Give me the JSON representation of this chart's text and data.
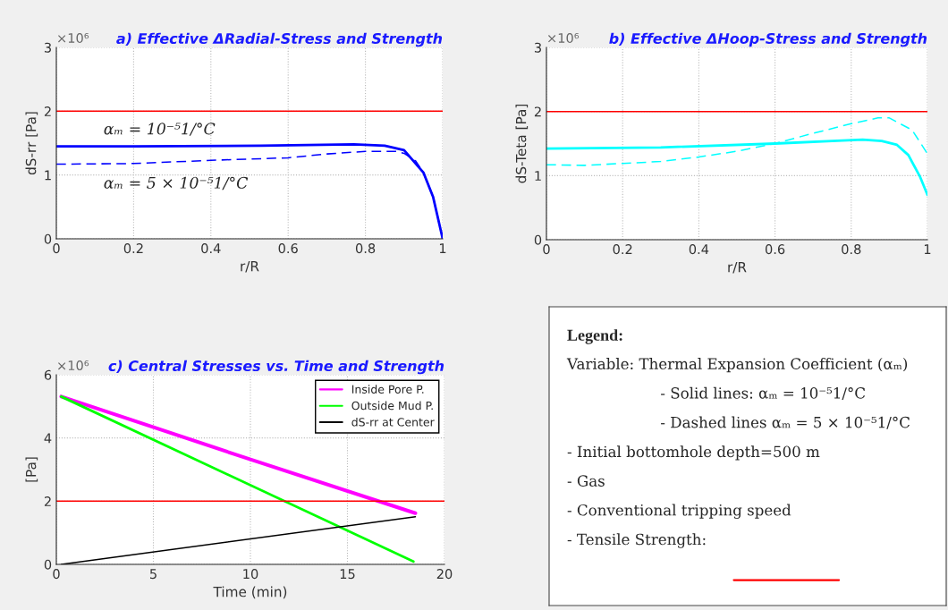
{
  "chart_data": [
    {
      "type": "line",
      "title": "a) Effective ΔRadial-Stress and Strength",
      "xlabel": "r/R",
      "ylabel": "dS-rr [Pa]",
      "annotations": [
        "×10⁶"
      ],
      "xlim": [
        0,
        1
      ],
      "ylim": [
        0,
        3
      ],
      "xticks": [
        0,
        0.2,
        0.4,
        0.6,
        0.8,
        1
      ],
      "yticks": [
        0,
        1,
        2,
        3
      ],
      "grid": true,
      "ref_lines": [
        {
          "axis": "y",
          "value": 2,
          "color": "#ff0000"
        }
      ],
      "series": [
        {
          "name": "αₘ = 10⁻⁵1/°C",
          "color": "#0000ff",
          "line_style": "solid",
          "x": [
            0,
            0.2,
            0.53,
            0.77,
            0.85,
            0.9,
            0.95,
            0.975,
            1.0
          ],
          "values": [
            1.45,
            1.45,
            1.46,
            1.48,
            1.46,
            1.39,
            1.04,
            0.66,
            0
          ]
        },
        {
          "name": "αₘ = 5 × 10⁻⁵1/°C",
          "color": "#0000ff",
          "line_style": "dashed",
          "x": [
            0,
            0.2,
            0.4,
            0.6,
            0.7,
            0.8,
            0.88,
            0.9,
            0.93,
            0.95,
            0.975,
            1.0
          ],
          "values": [
            1.17,
            1.18,
            1.23,
            1.27,
            1.33,
            1.37,
            1.37,
            1.34,
            1.22,
            1.04,
            0.66,
            0
          ]
        }
      ]
    },
    {
      "type": "line",
      "title": "b) Effective ΔHoop-Stress and Strength",
      "xlabel": "r/R",
      "ylabel": "dS-Teta [Pa]",
      "annotations": [
        "×10⁶"
      ],
      "xlim": [
        0,
        1
      ],
      "ylim": [
        0,
        3
      ],
      "xticks": [
        0,
        0.2,
        0.4,
        0.6,
        0.8,
        1
      ],
      "yticks": [
        0,
        1,
        2,
        3
      ],
      "grid": true,
      "ref_lines": [
        {
          "axis": "y",
          "value": 2,
          "color": "#ff0000"
        }
      ],
      "series": [
        {
          "color": "#00ffff",
          "line_style": "solid",
          "x": [
            0,
            0.3,
            0.6,
            0.75,
            0.83,
            0.88,
            0.92,
            0.95,
            0.98,
            1.0
          ],
          "values": [
            1.42,
            1.44,
            1.5,
            1.54,
            1.56,
            1.54,
            1.48,
            1.32,
            0.99,
            0.7
          ]
        },
        {
          "color": "#00ffff",
          "line_style": "dashed",
          "x": [
            0,
            0.1,
            0.2,
            0.3,
            0.4,
            0.5,
            0.6,
            0.7,
            0.8,
            0.87,
            0.9,
            0.96,
            1.0
          ],
          "values": [
            1.17,
            1.16,
            1.19,
            1.22,
            1.29,
            1.38,
            1.5,
            1.66,
            1.81,
            1.9,
            1.9,
            1.71,
            1.34
          ]
        }
      ]
    },
    {
      "type": "line",
      "title": "c) Central Stresses vs. Time and Strength",
      "xlabel": "Time (min)",
      "ylabel": "[Pa]",
      "annotations": [
        "×10⁶"
      ],
      "xlim": [
        0,
        20
      ],
      "ylim": [
        0,
        6
      ],
      "xticks": [
        0,
        5,
        10,
        15,
        20
      ],
      "yticks": [
        0,
        2,
        4,
        6
      ],
      "grid": true,
      "legend": "top right",
      "ref_lines": [
        {
          "axis": "y",
          "value": 2,
          "color": "#ff0000"
        }
      ],
      "series": [
        {
          "name": "Inside Pore P.",
          "color": "#ff00ff",
          "x": [
            0.25,
            10,
            18.5
          ],
          "values": [
            5.31,
            3.32,
            1.62
          ]
        },
        {
          "name": "Outside Mud P.",
          "color": "#00ff00",
          "x": [
            0.25,
            18.4
          ],
          "values": [
            5.31,
            0.09
          ]
        },
        {
          "name": "dS-rr at Center",
          "color": "#000000",
          "x": [
            0.25,
            18.5
          ],
          "values": [
            0,
            1.51
          ]
        }
      ]
    },
    {
      "type": "other",
      "title": "Legend:",
      "annotations": [
        "Variable: Thermal Expansion Coefficient (αₘ)",
        "- Solid lines: αₘ = 10⁻⁵1/°C",
        "- Dashed lines αₘ = 5 × 10⁻⁵1/°C",
        "- Initial bottomhole depth=500 m",
        "- Gas",
        "- Conventional tripping speed",
        "- Tensile Strength:"
      ]
    }
  ]
}
